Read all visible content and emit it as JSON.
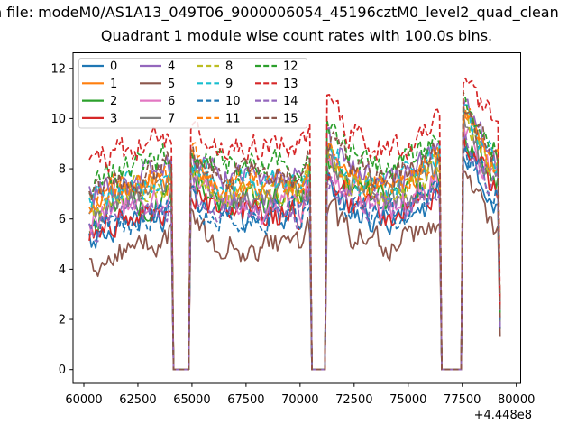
{
  "header": {
    "file_line": "n file: modeM0/AS1A13_049T06_9000006054_45196cztM0_level2_quad_clean"
  },
  "chart_data": {
    "type": "line",
    "title": "Quadrant 1 module wise count rates with 100.0s bins.",
    "xlabel": "",
    "ylabel": "",
    "x_axis": {
      "tick_labels": [
        "60000",
        "62500",
        "65000",
        "67500",
        "70000",
        "72500",
        "75000",
        "77500",
        "80000"
      ],
      "tick_values": [
        60000,
        62500,
        65000,
        67500,
        70000,
        72500,
        75000,
        77500,
        80000
      ],
      "offset_label": "+4.448e8",
      "lim": [
        59500,
        80200
      ]
    },
    "y_axis": {
      "tick_labels": [
        "0",
        "2",
        "4",
        "6",
        "8",
        "10",
        "12"
      ],
      "tick_values": [
        0,
        2,
        4,
        6,
        8,
        10,
        12
      ],
      "lim": [
        -0.55,
        12.62
      ]
    },
    "bin_seconds": 100,
    "time_range": [
      60250,
      79250
    ],
    "gaps": [
      [
        64100,
        64950
      ],
      [
        70500,
        71250
      ],
      [
        76500,
        77500
      ]
    ],
    "gap_value": 0,
    "baseline_shape": [
      [
        60250,
        8.1
      ],
      [
        60900,
        8.5
      ],
      [
        61800,
        8.7
      ],
      [
        62800,
        8.9
      ],
      [
        63600,
        9.1
      ],
      [
        64050,
        9.35
      ],
      [
        64950,
        10.0
      ],
      [
        65400,
        9.4
      ],
      [
        66200,
        9.0
      ],
      [
        67000,
        8.85
      ],
      [
        67800,
        9.0
      ],
      [
        68600,
        8.85
      ],
      [
        69400,
        9.0
      ],
      [
        70100,
        8.85
      ],
      [
        70450,
        9.6
      ],
      [
        71250,
        10.5
      ],
      [
        71900,
        9.7
      ],
      [
        72700,
        9.2
      ],
      [
        73500,
        9.0
      ],
      [
        74200,
        8.85
      ],
      [
        75000,
        9.1
      ],
      [
        75800,
        9.5
      ],
      [
        76450,
        10.1
      ],
      [
        77550,
        11.8
      ],
      [
        78000,
        11.15
      ],
      [
        78500,
        10.4
      ],
      [
        79000,
        9.8
      ],
      [
        79250,
        9.55
      ]
    ],
    "noise": {
      "amp": 1.0,
      "seed": 3
    },
    "final_drop": {
      "base": 1.3,
      "slope": 0.28
    },
    "legend": {
      "location": "upper left",
      "columns": 4,
      "rows": 4,
      "border_color": "#cccccc"
    },
    "series": [
      {
        "name": "0",
        "color": "#1f77b4",
        "style": "solid",
        "offset": -2.9
      },
      {
        "name": "1",
        "color": "#ff7f0e",
        "style": "solid",
        "offset": -1.6
      },
      {
        "name": "2",
        "color": "#2ca02c",
        "style": "solid",
        "offset": -2.2
      },
      {
        "name": "3",
        "color": "#d62728",
        "style": "solid",
        "offset": -2.7
      },
      {
        "name": "4",
        "color": "#9467bd",
        "style": "solid",
        "offset": -1.3
      },
      {
        "name": "5",
        "color": "#8c564b",
        "style": "solid",
        "offset": -4.0
      },
      {
        "name": "6",
        "color": "#e377c2",
        "style": "solid",
        "offset": -2.3
      },
      {
        "name": "7",
        "color": "#7f7f7f",
        "style": "solid",
        "offset": -1.9
      },
      {
        "name": "8",
        "color": "#bcbd22",
        "style": "dashed",
        "offset": -1.8
      },
      {
        "name": "9",
        "color": "#17becf",
        "style": "dashed",
        "offset": -1.5
      },
      {
        "name": "10",
        "color": "#1f77b4",
        "style": "dashed",
        "offset": -2.8
      },
      {
        "name": "11",
        "color": "#ff7f0e",
        "style": "dashed",
        "offset": -1.5
      },
      {
        "name": "12",
        "color": "#2ca02c",
        "style": "dashed",
        "offset": -0.8
      },
      {
        "name": "13",
        "color": "#d62728",
        "style": "dashed",
        "offset": 0.0
      },
      {
        "name": "14",
        "color": "#9467bd",
        "style": "dashed",
        "offset": -2.6
      },
      {
        "name": "15",
        "color": "#8c564b",
        "style": "dashed",
        "offset": -1.2
      }
    ]
  }
}
